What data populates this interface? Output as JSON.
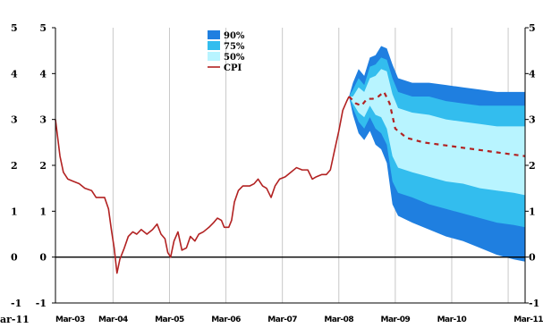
{
  "chart_data": {
    "type": "area",
    "title": "",
    "xlabel": "",
    "ylabel": "",
    "ylim": [
      -1,
      5
    ],
    "y_ticks": [
      "5",
      "4",
      "3",
      "2",
      "1",
      "0",
      "-1"
    ],
    "outer_left_ticks": [
      "5",
      "4",
      "3",
      "2",
      "1",
      "0",
      "-1"
    ],
    "left_edge_label": "ar-11",
    "x_tick_labels": [
      "Mar-03",
      "Mar-04",
      "Mar-05",
      "Mar-06",
      "Mar-07",
      "Mar-08",
      "Mar-09",
      "Mar-10",
      "Mar-11"
    ],
    "x_tick_years": [
      2003,
      2004,
      2005,
      2006,
      2007,
      2008,
      2009,
      2010,
      2011
    ],
    "grid": true,
    "legend_position": "top-center",
    "legend": [
      {
        "label": "90%",
        "color": "#1f7fe0"
      },
      {
        "label": "75%",
        "color": "#33bdee"
      },
      {
        "label": "50%",
        "color": "#b8f4ff"
      },
      {
        "label": "CPI",
        "color": "#b22222"
      }
    ],
    "cpi_series": {
      "name": "CPI",
      "color": "#b22222",
      "points": [
        [
          2002.98,
          3.0
        ],
        [
          2003.02,
          2.6
        ],
        [
          2003.06,
          2.2
        ],
        [
          2003.12,
          1.85
        ],
        [
          2003.2,
          1.7
        ],
        [
          2003.3,
          1.65
        ],
        [
          2003.4,
          1.6
        ],
        [
          2003.5,
          1.5
        ],
        [
          2003.62,
          1.45
        ],
        [
          2003.7,
          1.3
        ],
        [
          2003.85,
          1.3
        ],
        [
          2003.92,
          1.05
        ],
        [
          2003.97,
          0.6
        ],
        [
          2004.02,
          0.2
        ],
        [
          2004.07,
          -0.35
        ],
        [
          2004.12,
          -0.05
        ],
        [
          2004.2,
          0.2
        ],
        [
          2004.27,
          0.45
        ],
        [
          2004.35,
          0.55
        ],
        [
          2004.42,
          0.5
        ],
        [
          2004.5,
          0.6
        ],
        [
          2004.6,
          0.5
        ],
        [
          2004.7,
          0.6
        ],
        [
          2004.78,
          0.72
        ],
        [
          2004.85,
          0.5
        ],
        [
          2004.92,
          0.4
        ],
        [
          2004.97,
          0.1
        ],
        [
          2005.02,
          0.0
        ],
        [
          2005.08,
          0.35
        ],
        [
          2005.15,
          0.55
        ],
        [
          2005.22,
          0.15
        ],
        [
          2005.3,
          0.2
        ],
        [
          2005.37,
          0.45
        ],
        [
          2005.45,
          0.35
        ],
        [
          2005.52,
          0.5
        ],
        [
          2005.6,
          0.55
        ],
        [
          2005.7,
          0.65
        ],
        [
          2005.78,
          0.75
        ],
        [
          2005.85,
          0.85
        ],
        [
          2005.92,
          0.8
        ],
        [
          2005.97,
          0.65
        ],
        [
          2006.05,
          0.65
        ],
        [
          2006.1,
          0.8
        ],
        [
          2006.15,
          1.2
        ],
        [
          2006.22,
          1.45
        ],
        [
          2006.3,
          1.55
        ],
        [
          2006.42,
          1.55
        ],
        [
          2006.5,
          1.6
        ],
        [
          2006.57,
          1.7
        ],
        [
          2006.65,
          1.55
        ],
        [
          2006.72,
          1.5
        ],
        [
          2006.8,
          1.3
        ],
        [
          2006.87,
          1.55
        ],
        [
          2006.95,
          1.7
        ],
        [
          2007.05,
          1.75
        ],
        [
          2007.15,
          1.85
        ],
        [
          2007.25,
          1.95
        ],
        [
          2007.35,
          1.9
        ],
        [
          2007.45,
          1.9
        ],
        [
          2007.53,
          1.7
        ],
        [
          2007.6,
          1.75
        ],
        [
          2007.7,
          1.8
        ],
        [
          2007.78,
          1.8
        ],
        [
          2007.85,
          1.9
        ],
        [
          2007.92,
          2.3
        ],
        [
          2008.0,
          2.75
        ],
        [
          2008.07,
          3.2
        ],
        [
          2008.14,
          3.4
        ],
        [
          2008.18,
          3.5
        ]
      ]
    },
    "forecast_median": [
      [
        2008.18,
        3.5
      ],
      [
        2008.3,
        3.35
      ],
      [
        2008.4,
        3.3
      ],
      [
        2008.5,
        3.45
      ],
      [
        2008.6,
        3.45
      ],
      [
        2008.7,
        3.5
      ],
      [
        2008.8,
        3.6
      ],
      [
        2008.9,
        3.35
      ],
      [
        2009.0,
        2.8
      ],
      [
        2009.2,
        2.6
      ],
      [
        2009.5,
        2.5
      ],
      [
        2009.8,
        2.45
      ],
      [
        2010.1,
        2.4
      ],
      [
        2010.4,
        2.35
      ],
      [
        2010.7,
        2.3
      ],
      [
        2011.0,
        2.25
      ],
      [
        2011.3,
        2.2
      ]
    ],
    "fan_bands": [
      {
        "name": "90%",
        "color": "#1f7fe0",
        "points": [
          [
            2008.18,
            3.5,
            3.5
          ],
          [
            2008.25,
            3.8,
            3.1
          ],
          [
            2008.35,
            4.1,
            2.7
          ],
          [
            2008.45,
            3.95,
            2.55
          ],
          [
            2008.55,
            4.35,
            2.75
          ],
          [
            2008.65,
            4.4,
            2.45
          ],
          [
            2008.75,
            4.6,
            2.35
          ],
          [
            2008.85,
            4.55,
            2.05
          ],
          [
            2008.95,
            4.2,
            1.15
          ],
          [
            2009.05,
            3.9,
            0.9
          ],
          [
            2009.3,
            3.8,
            0.75
          ],
          [
            2009.6,
            3.8,
            0.6
          ],
          [
            2009.9,
            3.75,
            0.45
          ],
          [
            2010.2,
            3.7,
            0.35
          ],
          [
            2010.5,
            3.65,
            0.2
          ],
          [
            2010.8,
            3.6,
            0.05
          ],
          [
            2011.1,
            3.6,
            -0.05
          ],
          [
            2011.3,
            3.6,
            -0.1
          ]
        ]
      },
      {
        "name": "75%",
        "color": "#33bdee",
        "points": [
          [
            2008.18,
            3.5,
            3.5
          ],
          [
            2008.25,
            3.65,
            3.25
          ],
          [
            2008.35,
            3.9,
            2.95
          ],
          [
            2008.45,
            3.75,
            2.8
          ],
          [
            2008.55,
            4.15,
            3.05
          ],
          [
            2008.65,
            4.2,
            2.8
          ],
          [
            2008.75,
            4.35,
            2.7
          ],
          [
            2008.85,
            4.3,
            2.45
          ],
          [
            2008.95,
            3.9,
            1.65
          ],
          [
            2009.05,
            3.6,
            1.4
          ],
          [
            2009.3,
            3.5,
            1.3
          ],
          [
            2009.6,
            3.5,
            1.15
          ],
          [
            2009.9,
            3.4,
            1.05
          ],
          [
            2010.2,
            3.35,
            0.95
          ],
          [
            2010.5,
            3.3,
            0.85
          ],
          [
            2010.8,
            3.3,
            0.75
          ],
          [
            2011.1,
            3.3,
            0.7
          ],
          [
            2011.3,
            3.3,
            0.65
          ]
        ]
      },
      {
        "name": "50%",
        "color": "#b8f4ff",
        "points": [
          [
            2008.18,
            3.5,
            3.5
          ],
          [
            2008.25,
            3.5,
            3.35
          ],
          [
            2008.35,
            3.7,
            3.15
          ],
          [
            2008.45,
            3.6,
            3.05
          ],
          [
            2008.55,
            3.9,
            3.3
          ],
          [
            2008.65,
            3.95,
            3.1
          ],
          [
            2008.75,
            4.1,
            3.05
          ],
          [
            2008.85,
            4.05,
            2.8
          ],
          [
            2008.95,
            3.55,
            2.2
          ],
          [
            2009.05,
            3.25,
            1.95
          ],
          [
            2009.3,
            3.15,
            1.85
          ],
          [
            2009.6,
            3.1,
            1.75
          ],
          [
            2009.9,
            3.0,
            1.65
          ],
          [
            2010.2,
            2.95,
            1.6
          ],
          [
            2010.5,
            2.9,
            1.5
          ],
          [
            2010.8,
            2.85,
            1.45
          ],
          [
            2011.1,
            2.85,
            1.4
          ],
          [
            2011.3,
            2.85,
            1.35
          ]
        ]
      }
    ]
  }
}
